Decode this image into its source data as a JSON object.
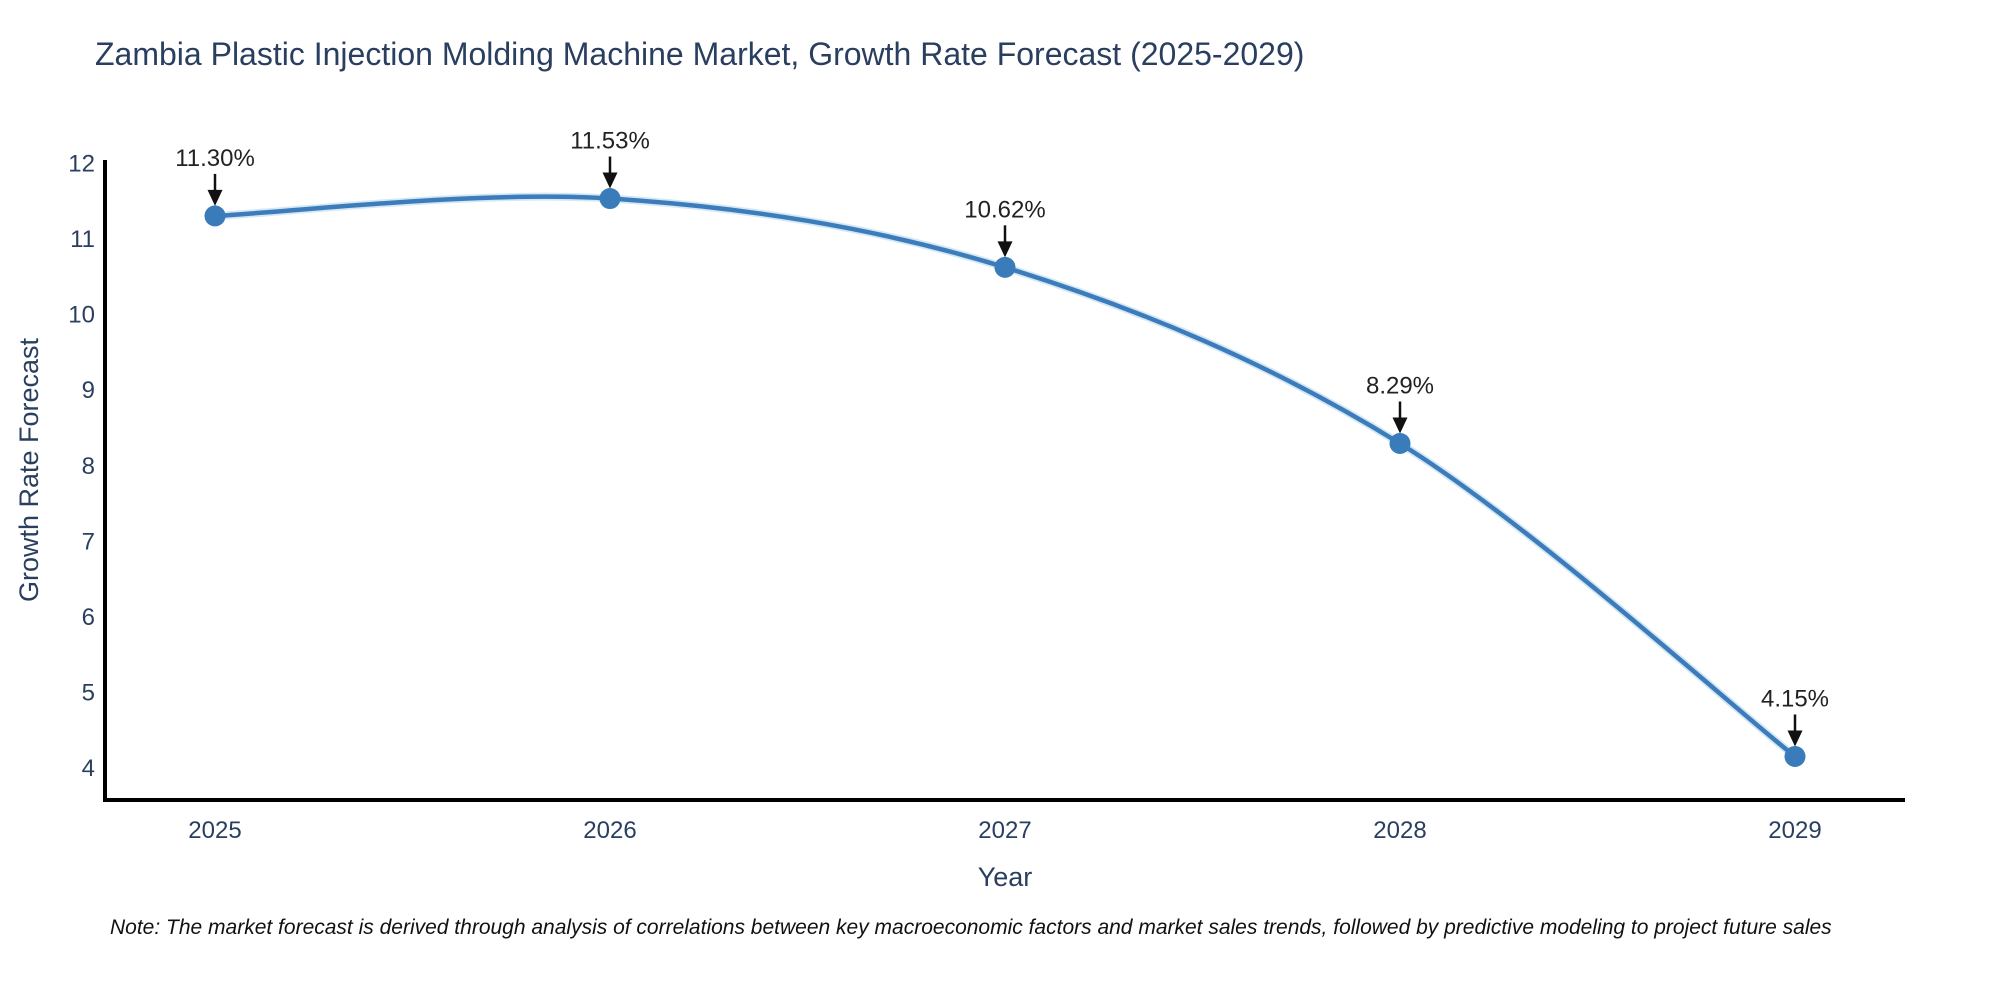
{
  "chart": {
    "title": "Zambia Plastic Injection Molding Machine Market, Growth Rate Forecast (2025-2029)",
    "note": "Note: The market forecast is derived through analysis of correlations between key macroeconomic factors and market sales trends, followed by predictive modeling to project future sales"
  },
  "chart_data": {
    "type": "line",
    "title": "Zambia Plastic Injection Molding Machine Market, Growth Rate Forecast (2025-2029)",
    "x": [
      2025,
      2026,
      2027,
      2028,
      2029
    ],
    "values": [
      11.3,
      11.53,
      10.62,
      8.29,
      4.15
    ],
    "point_labels": [
      "11.30%",
      "11.53%",
      "10.62%",
      "8.29%",
      "4.15%"
    ],
    "xlabel": "Year",
    "ylabel": "Growth Rate Forecast",
    "yticks": [
      4,
      5,
      6,
      7,
      8,
      9,
      10,
      11,
      12
    ],
    "ylim": [
      3.57,
      12.0
    ],
    "grid": false,
    "legend": "none",
    "line_shape": "spline",
    "annotation_style": "label-with-down-arrow",
    "colors": {
      "line": "#3c7cbb",
      "line_glow": "#9ec9e8",
      "marker": "#3a7cba",
      "axis": "#000000",
      "title_text": "#2a3f5f",
      "tick_text": "#2a3f5f",
      "axis_title_text": "#2a3f5f",
      "annotation_text": "#222222",
      "arrow": "#111111",
      "note_text": "#111111",
      "background": "#ffffff"
    }
  }
}
